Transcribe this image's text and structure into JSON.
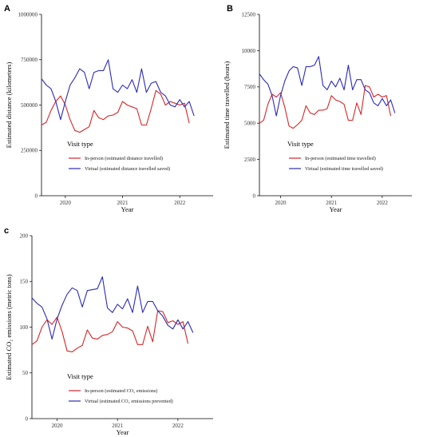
{
  "figure": {
    "colors": {
      "in_person": "#d62728",
      "virtual": "#2b2bb5"
    }
  },
  "chart_data": [
    {
      "panel": "A",
      "type": "line",
      "ylabel": "Estimated distance (kilometers)",
      "xlabel": "Year",
      "ylim": [
        0,
        1000000
      ],
      "yticks": [
        "0",
        "250000",
        "500000",
        "750000",
        "1000000"
      ],
      "ytick_values": [
        0,
        250000,
        500000,
        750000,
        1000000
      ],
      "xlim": [
        0,
        36
      ],
      "xticks": [
        "2020",
        "2021",
        "2022"
      ],
      "xtick_values": [
        5,
        17,
        29
      ],
      "legend_title": "Visit type",
      "series": [
        {
          "key": "in_person",
          "name": "In-person (estimated distance travelled)",
          "values": [
            390000,
            405000,
            470000,
            520000,
            550000,
            500000,
            420000,
            360000,
            350000,
            365000,
            380000,
            470000,
            430000,
            420000,
            440000,
            445000,
            460000,
            520000,
            500000,
            490000,
            480000,
            390000,
            390000,
            480000,
            580000,
            560000,
            500000,
            520000,
            510000,
            500000,
            510000,
            400000
          ]
        },
        {
          "key": "virtual",
          "name": "Virtual (estimated distance travelled saved)",
          "values": [
            645000,
            610000,
            590000,
            520000,
            420000,
            520000,
            610000,
            650000,
            700000,
            680000,
            590000,
            680000,
            690000,
            690000,
            750000,
            590000,
            570000,
            610000,
            590000,
            640000,
            570000,
            700000,
            570000,
            620000,
            630000,
            570000,
            550000,
            500000,
            490000,
            530000,
            490000,
            520000,
            440000
          ]
        }
      ]
    },
    {
      "panel": "B",
      "type": "line",
      "ylabel": "Estimated time travelled (hours)",
      "xlabel": "Year",
      "ylim": [
        0,
        12500
      ],
      "yticks": [
        "0",
        "2500",
        "5000",
        "7500",
        "10000",
        "12500"
      ],
      "ytick_values": [
        0,
        2500,
        5000,
        7500,
        10000,
        12500
      ],
      "xlim": [
        0,
        36
      ],
      "xticks": [
        "2020",
        "2021",
        "2022"
      ],
      "xtick_values": [
        5,
        17,
        29
      ],
      "legend_title": "Visit type",
      "series": [
        {
          "key": "in_person",
          "name": "In-person (estimated time travelled)",
          "values": [
            5000,
            5200,
            6300,
            7000,
            6800,
            7100,
            6100,
            4800,
            4650,
            4900,
            5200,
            6200,
            5700,
            5600,
            5900,
            5900,
            6000,
            6900,
            6600,
            6500,
            6300,
            5200,
            5200,
            6400,
            5600,
            7600,
            7500,
            6800,
            7000,
            6800,
            6900,
            5500
          ]
        },
        {
          "key": "virtual",
          "name": "Virtual (estimated time travelled saved)",
          "values": [
            8400,
            8000,
            7700,
            6900,
            5500,
            6900,
            7900,
            8600,
            8900,
            8800,
            7600,
            8900,
            8900,
            9000,
            9600,
            7600,
            7300,
            7900,
            7500,
            8100,
            7300,
            9000,
            7300,
            8000,
            8000,
            7300,
            7100,
            6400,
            6200,
            6700,
            6200,
            6600,
            5700
          ]
        }
      ]
    },
    {
      "panel": "c",
      "type": "line",
      "ylabel": "Estimated CO₂ emissions (metric tons)",
      "xlabel": "Year",
      "ylim": [
        0,
        200
      ],
      "yticks": [
        "0",
        "50",
        "100",
        "150",
        "200"
      ],
      "ytick_values": [
        0,
        50,
        100,
        150,
        200
      ],
      "xlim": [
        0,
        36
      ],
      "xticks": [
        "2020",
        "2021",
        "2022"
      ],
      "xtick_values": [
        5,
        17,
        29
      ],
      "legend_title": "Visit type",
      "series": [
        {
          "key": "in_person",
          "name": "In-person (estimated CO₂ emissions)",
          "values": [
            81,
            85,
            100,
            108,
            103,
            111,
            95,
            74,
            73,
            77,
            80,
            97,
            88,
            87,
            91,
            92,
            95,
            106,
            100,
            99,
            96,
            81,
            81,
            101,
            84,
            118,
            117,
            105,
            107,
            103,
            106,
            82
          ]
        },
        {
          "key": "virtual",
          "name": "Virtual (estimated CO₂ emissions prevented)",
          "values": [
            132,
            126,
            122,
            109,
            87,
            109,
            124,
            136,
            143,
            140,
            122,
            140,
            141,
            142,
            155,
            121,
            116,
            125,
            120,
            131,
            116,
            145,
            116,
            128,
            128,
            118,
            112,
            102,
            98,
            108,
            98,
            106,
            94
          ]
        }
      ]
    }
  ]
}
